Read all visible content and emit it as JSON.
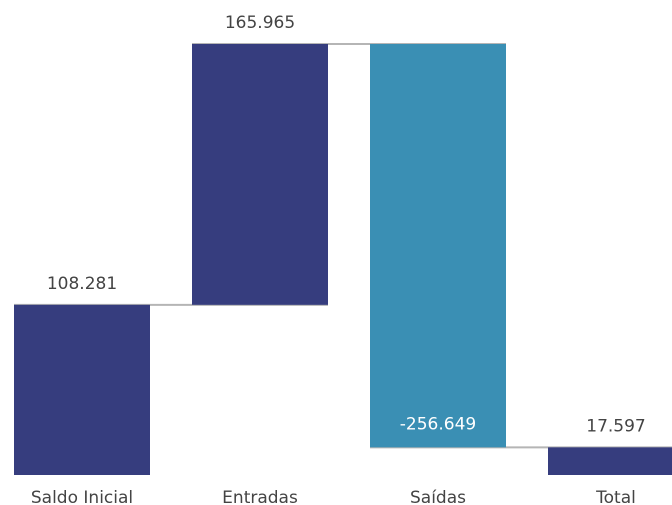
{
  "chart_data": {
    "type": "bar",
    "subtype": "waterfall",
    "title": "",
    "xlabel": "",
    "ylabel": "",
    "categories": [
      "Saldo Inicial",
      "Entradas",
      "Saídas",
      "Total"
    ],
    "values": [
      108281,
      165965,
      -256649,
      17597
    ],
    "value_labels": [
      "108.281",
      "165.965",
      "-256.649",
      "17.597"
    ],
    "bar_kinds": [
      "total",
      "increase",
      "decrease",
      "total"
    ],
    "colors": {
      "total": "#363d7e",
      "increase": "#363d7e",
      "decrease": "#3a8fb4",
      "connector": "#b5b5b5"
    },
    "ylim": [
      0,
      274246
    ],
    "grid": false,
    "legend": "none"
  }
}
